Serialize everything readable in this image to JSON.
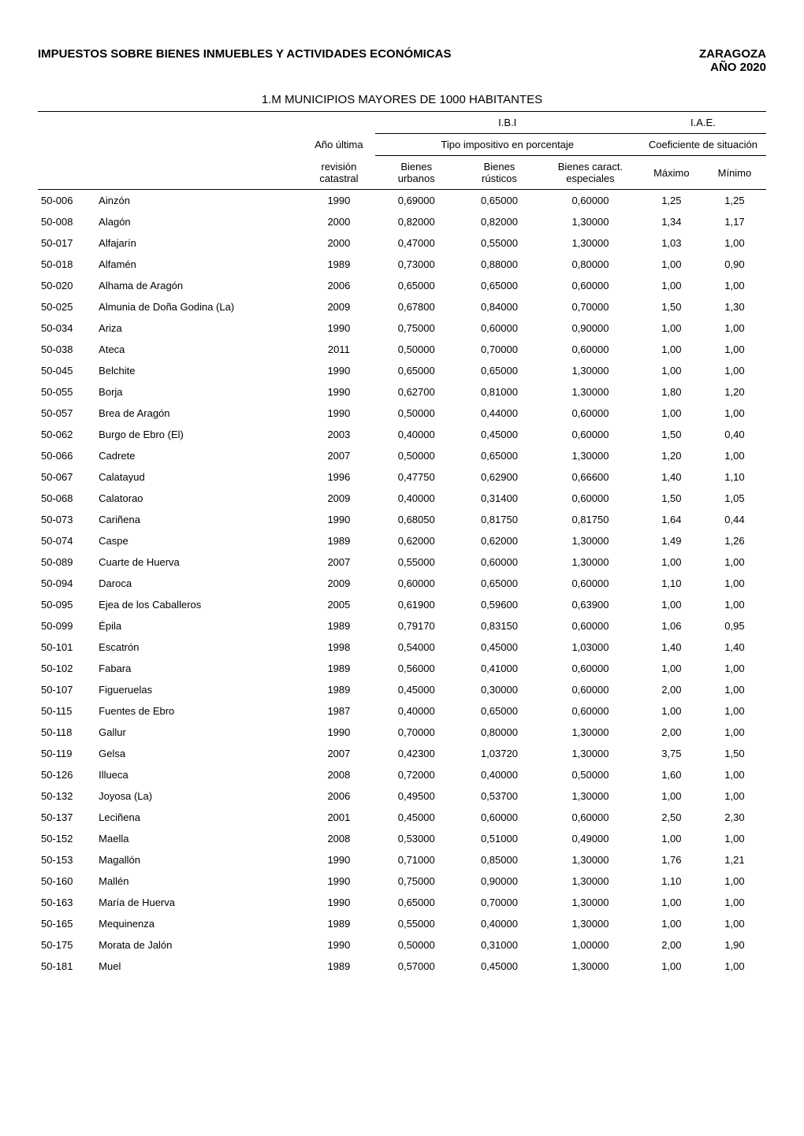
{
  "colors": {
    "text": "#000000",
    "background": "#ffffff",
    "rule": "#000000"
  },
  "typography": {
    "family": "Arial",
    "title_size_pt": 11,
    "header_size_pt": 10,
    "body_size_pt": 10
  },
  "page": {
    "title_left": "IMPUESTOS SOBRE BIENES INMUEBLES Y ACTIVIDADES ECONÓMICAS",
    "title_right_line1": "ZARAGOZA",
    "title_right_line2": "AÑO 2020",
    "subtitle": "1.M MUNICIPIOS MAYORES DE 1000 HABITANTES"
  },
  "headers": {
    "group_ibi": "I.B.I",
    "group_iae": "I.A.E.",
    "ano_ultima": "Año última",
    "tipo_impositivo": "Tipo impositivo en porcentaje",
    "coef_situacion": "Coeficiente de situación",
    "revision_catastral_l1": "revisión",
    "revision_catastral_l2": "catastral",
    "bienes_urbanos_l1": "Bienes",
    "bienes_urbanos_l2": "urbanos",
    "bienes_rusticos_l1": "Bienes",
    "bienes_rusticos_l2": "rústicos",
    "bienes_caract_l1": "Bienes caract.",
    "bienes_caract_l2": "especiales",
    "maximo": "Máximo",
    "minimo": "Mínimo"
  },
  "columns": [
    "code",
    "name",
    "year",
    "urbanos",
    "rusticos",
    "especiales",
    "maximo",
    "minimo"
  ],
  "rows": [
    [
      "50-006",
      "Ainzón",
      "1990",
      "0,69000",
      "0,65000",
      "0,60000",
      "1,25",
      "1,25"
    ],
    [
      "50-008",
      "Alagón",
      "2000",
      "0,82000",
      "0,82000",
      "1,30000",
      "1,34",
      "1,17"
    ],
    [
      "50-017",
      "Alfajarín",
      "2000",
      "0,47000",
      "0,55000",
      "1,30000",
      "1,03",
      "1,00"
    ],
    [
      "50-018",
      "Alfamén",
      "1989",
      "0,73000",
      "0,88000",
      "0,80000",
      "1,00",
      "0,90"
    ],
    [
      "50-020",
      "Alhama de Aragón",
      "2006",
      "0,65000",
      "0,65000",
      "0,60000",
      "1,00",
      "1,00"
    ],
    [
      "50-025",
      "Almunia de Doña Godina (La)",
      "2009",
      "0,67800",
      "0,84000",
      "0,70000",
      "1,50",
      "1,30"
    ],
    [
      "50-034",
      "Ariza",
      "1990",
      "0,75000",
      "0,60000",
      "0,90000",
      "1,00",
      "1,00"
    ],
    [
      "50-038",
      "Ateca",
      "2011",
      "0,50000",
      "0,70000",
      "0,60000",
      "1,00",
      "1,00"
    ],
    [
      "50-045",
      "Belchite",
      "1990",
      "0,65000",
      "0,65000",
      "1,30000",
      "1,00",
      "1,00"
    ],
    [
      "50-055",
      "Borja",
      "1990",
      "0,62700",
      "0,81000",
      "1,30000",
      "1,80",
      "1,20"
    ],
    [
      "50-057",
      "Brea de Aragón",
      "1990",
      "0,50000",
      "0,44000",
      "0,60000",
      "1,00",
      "1,00"
    ],
    [
      "50-062",
      "Burgo de Ebro (El)",
      "2003",
      "0,40000",
      "0,45000",
      "0,60000",
      "1,50",
      "0,40"
    ],
    [
      "50-066",
      "Cadrete",
      "2007",
      "0,50000",
      "0,65000",
      "1,30000",
      "1,20",
      "1,00"
    ],
    [
      "50-067",
      "Calatayud",
      "1996",
      "0,47750",
      "0,62900",
      "0,66600",
      "1,40",
      "1,10"
    ],
    [
      "50-068",
      "Calatorao",
      "2009",
      "0,40000",
      "0,31400",
      "0,60000",
      "1,50",
      "1,05"
    ],
    [
      "50-073",
      "Cariñena",
      "1990",
      "0,68050",
      "0,81750",
      "0,81750",
      "1,64",
      "0,44"
    ],
    [
      "50-074",
      "Caspe",
      "1989",
      "0,62000",
      "0,62000",
      "1,30000",
      "1,49",
      "1,26"
    ],
    [
      "50-089",
      "Cuarte de Huerva",
      "2007",
      "0,55000",
      "0,60000",
      "1,30000",
      "1,00",
      "1,00"
    ],
    [
      "50-094",
      "Daroca",
      "2009",
      "0,60000",
      "0,65000",
      "0,60000",
      "1,10",
      "1,00"
    ],
    [
      "50-095",
      "Ejea de los Caballeros",
      "2005",
      "0,61900",
      "0,59600",
      "0,63900",
      "1,00",
      "1,00"
    ],
    [
      "50-099",
      "Épila",
      "1989",
      "0,79170",
      "0,83150",
      "0,60000",
      "1,06",
      "0,95"
    ],
    [
      "50-101",
      "Escatrón",
      "1998",
      "0,54000",
      "0,45000",
      "1,03000",
      "1,40",
      "1,40"
    ],
    [
      "50-102",
      "Fabara",
      "1989",
      "0,56000",
      "0,41000",
      "0,60000",
      "1,00",
      "1,00"
    ],
    [
      "50-107",
      "Figueruelas",
      "1989",
      "0,45000",
      "0,30000",
      "0,60000",
      "2,00",
      "1,00"
    ],
    [
      "50-115",
      "Fuentes de Ebro",
      "1987",
      "0,40000",
      "0,65000",
      "0,60000",
      "1,00",
      "1,00"
    ],
    [
      "50-118",
      "Gallur",
      "1990",
      "0,70000",
      "0,80000",
      "1,30000",
      "2,00",
      "1,00"
    ],
    [
      "50-119",
      "Gelsa",
      "2007",
      "0,42300",
      "1,03720",
      "1,30000",
      "3,75",
      "1,50"
    ],
    [
      "50-126",
      "Illueca",
      "2008",
      "0,72000",
      "0,40000",
      "0,50000",
      "1,60",
      "1,00"
    ],
    [
      "50-132",
      "Joyosa (La)",
      "2006",
      "0,49500",
      "0,53700",
      "1,30000",
      "1,00",
      "1,00"
    ],
    [
      "50-137",
      "Leciñena",
      "2001",
      "0,45000",
      "0,60000",
      "0,60000",
      "2,50",
      "2,30"
    ],
    [
      "50-152",
      "Maella",
      "2008",
      "0,53000",
      "0,51000",
      "0,49000",
      "1,00",
      "1,00"
    ],
    [
      "50-153",
      "Magallón",
      "1990",
      "0,71000",
      "0,85000",
      "1,30000",
      "1,76",
      "1,21"
    ],
    [
      "50-160",
      "Mallén",
      "1990",
      "0,75000",
      "0,90000",
      "1,30000",
      "1,10",
      "1,00"
    ],
    [
      "50-163",
      "María de Huerva",
      "1990",
      "0,65000",
      "0,70000",
      "1,30000",
      "1,00",
      "1,00"
    ],
    [
      "50-165",
      "Mequinenza",
      "1989",
      "0,55000",
      "0,40000",
      "1,30000",
      "1,00",
      "1,00"
    ],
    [
      "50-175",
      "Morata de Jalón",
      "1990",
      "0,50000",
      "0,31000",
      "1,00000",
      "2,00",
      "1,90"
    ],
    [
      "50-181",
      "Muel",
      "1989",
      "0,57000",
      "0,45000",
      "1,30000",
      "1,00",
      "1,00"
    ]
  ]
}
